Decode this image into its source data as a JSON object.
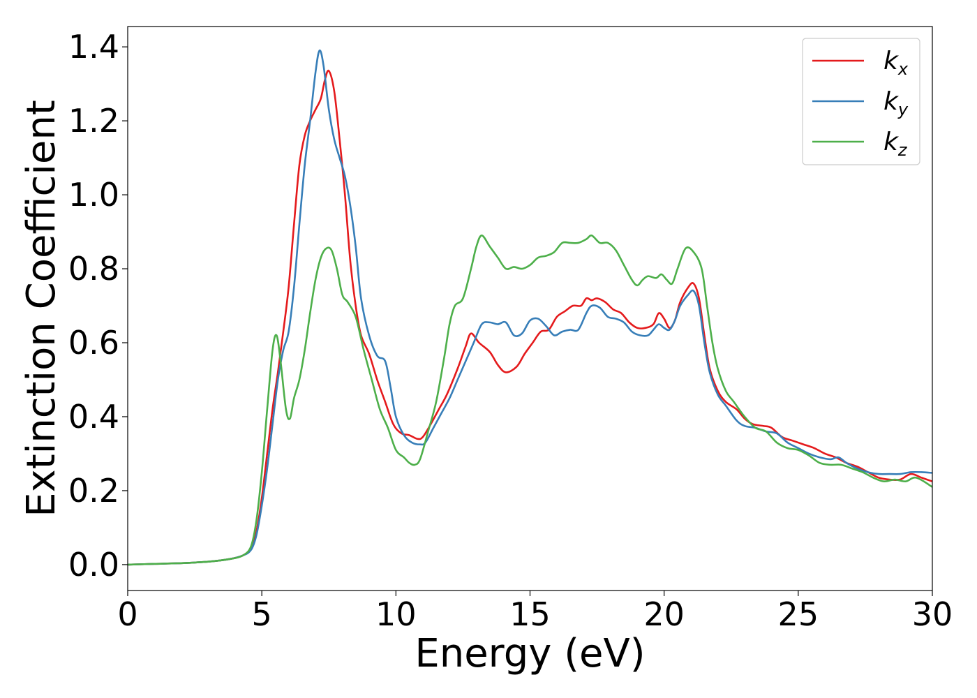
{
  "chart_data": {
    "type": "line",
    "title": "",
    "xlabel": "Energy (eV)",
    "ylabel": "Extinction Coefficient",
    "xlim": [
      0,
      30
    ],
    "ylim": [
      -0.07,
      1.455
    ],
    "xticks": [
      "0",
      "5",
      "10",
      "15",
      "20",
      "25",
      "30"
    ],
    "yticks": [
      "0.0",
      "0.2",
      "0.4",
      "0.6",
      "0.8",
      "1.0",
      "1.2",
      "1.4"
    ],
    "grid": false,
    "legend_position": "top-right",
    "series": [
      {
        "name": "k_x",
        "name_base": "k",
        "name_sub": "x",
        "color": "#e41a1c",
        "points": [
          [
            0,
            0
          ],
          [
            1,
            0.002
          ],
          [
            2,
            0.004
          ],
          [
            3,
            0.008
          ],
          [
            3.8,
            0.015
          ],
          [
            4.3,
            0.025
          ],
          [
            4.6,
            0.045
          ],
          [
            4.8,
            0.09
          ],
          [
            5.0,
            0.18
          ],
          [
            5.2,
            0.3
          ],
          [
            5.4,
            0.42
          ],
          [
            5.6,
            0.52
          ],
          [
            5.8,
            0.63
          ],
          [
            6.0,
            0.75
          ],
          [
            6.2,
            0.92
          ],
          [
            6.4,
            1.08
          ],
          [
            6.6,
            1.16
          ],
          [
            6.8,
            1.2
          ],
          [
            7.0,
            1.23
          ],
          [
            7.2,
            1.26
          ],
          [
            7.35,
            1.31
          ],
          [
            7.5,
            1.335
          ],
          [
            7.7,
            1.28
          ],
          [
            7.9,
            1.15
          ],
          [
            8.1,
            1.0
          ],
          [
            8.3,
            0.82
          ],
          [
            8.5,
            0.7
          ],
          [
            8.7,
            0.62
          ],
          [
            9.0,
            0.57
          ],
          [
            9.3,
            0.5
          ],
          [
            9.6,
            0.44
          ],
          [
            9.9,
            0.38
          ],
          [
            10.2,
            0.355
          ],
          [
            10.5,
            0.35
          ],
          [
            10.8,
            0.34
          ],
          [
            11.0,
            0.345
          ],
          [
            11.3,
            0.38
          ],
          [
            11.6,
            0.42
          ],
          [
            11.9,
            0.46
          ],
          [
            12.3,
            0.53
          ],
          [
            12.6,
            0.59
          ],
          [
            12.8,
            0.625
          ],
          [
            13.1,
            0.6
          ],
          [
            13.5,
            0.575
          ],
          [
            13.8,
            0.54
          ],
          [
            14.1,
            0.52
          ],
          [
            14.5,
            0.535
          ],
          [
            14.8,
            0.57
          ],
          [
            15.1,
            0.6
          ],
          [
            15.4,
            0.63
          ],
          [
            15.7,
            0.635
          ],
          [
            16.0,
            0.67
          ],
          [
            16.3,
            0.685
          ],
          [
            16.6,
            0.7
          ],
          [
            16.9,
            0.7
          ],
          [
            17.1,
            0.72
          ],
          [
            17.3,
            0.715
          ],
          [
            17.5,
            0.72
          ],
          [
            17.8,
            0.71
          ],
          [
            18.1,
            0.69
          ],
          [
            18.4,
            0.68
          ],
          [
            18.7,
            0.655
          ],
          [
            19.0,
            0.64
          ],
          [
            19.3,
            0.64
          ],
          [
            19.6,
            0.65
          ],
          [
            19.8,
            0.68
          ],
          [
            20.0,
            0.665
          ],
          [
            20.2,
            0.64
          ],
          [
            20.4,
            0.66
          ],
          [
            20.6,
            0.71
          ],
          [
            20.9,
            0.75
          ],
          [
            21.1,
            0.76
          ],
          [
            21.3,
            0.72
          ],
          [
            21.5,
            0.62
          ],
          [
            21.7,
            0.53
          ],
          [
            22.0,
            0.47
          ],
          [
            22.3,
            0.44
          ],
          [
            22.7,
            0.42
          ],
          [
            23.0,
            0.395
          ],
          [
            23.3,
            0.38
          ],
          [
            23.7,
            0.375
          ],
          [
            24.0,
            0.37
          ],
          [
            24.4,
            0.345
          ],
          [
            24.8,
            0.335
          ],
          [
            25.2,
            0.325
          ],
          [
            25.6,
            0.315
          ],
          [
            26.0,
            0.3
          ],
          [
            26.4,
            0.29
          ],
          [
            26.8,
            0.275
          ],
          [
            27.2,
            0.265
          ],
          [
            27.6,
            0.25
          ],
          [
            28.0,
            0.235
          ],
          [
            28.4,
            0.23
          ],
          [
            28.8,
            0.23
          ],
          [
            29.2,
            0.245
          ],
          [
            29.6,
            0.235
          ],
          [
            30.0,
            0.225
          ]
        ]
      },
      {
        "name": "k_y",
        "name_base": "k",
        "name_sub": "y",
        "color": "#377eb8",
        "points": [
          [
            0,
            0
          ],
          [
            1,
            0.002
          ],
          [
            2,
            0.004
          ],
          [
            3,
            0.008
          ],
          [
            3.8,
            0.015
          ],
          [
            4.3,
            0.025
          ],
          [
            4.6,
            0.04
          ],
          [
            4.8,
            0.08
          ],
          [
            5.0,
            0.16
          ],
          [
            5.2,
            0.26
          ],
          [
            5.4,
            0.38
          ],
          [
            5.6,
            0.5
          ],
          [
            5.8,
            0.58
          ],
          [
            6.0,
            0.63
          ],
          [
            6.2,
            0.75
          ],
          [
            6.4,
            0.92
          ],
          [
            6.6,
            1.08
          ],
          [
            6.8,
            1.2
          ],
          [
            7.0,
            1.33
          ],
          [
            7.15,
            1.39
          ],
          [
            7.3,
            1.35
          ],
          [
            7.5,
            1.23
          ],
          [
            7.7,
            1.15
          ],
          [
            7.9,
            1.1
          ],
          [
            8.1,
            1.05
          ],
          [
            8.3,
            0.97
          ],
          [
            8.5,
            0.86
          ],
          [
            8.7,
            0.72
          ],
          [
            9.0,
            0.62
          ],
          [
            9.3,
            0.565
          ],
          [
            9.6,
            0.55
          ],
          [
            9.8,
            0.48
          ],
          [
            10.0,
            0.4
          ],
          [
            10.3,
            0.35
          ],
          [
            10.6,
            0.33
          ],
          [
            10.9,
            0.325
          ],
          [
            11.1,
            0.33
          ],
          [
            11.4,
            0.37
          ],
          [
            11.7,
            0.41
          ],
          [
            12.0,
            0.45
          ],
          [
            12.3,
            0.5
          ],
          [
            12.6,
            0.55
          ],
          [
            12.9,
            0.6
          ],
          [
            13.2,
            0.65
          ],
          [
            13.5,
            0.655
          ],
          [
            13.8,
            0.65
          ],
          [
            14.1,
            0.655
          ],
          [
            14.4,
            0.62
          ],
          [
            14.7,
            0.625
          ],
          [
            15.0,
            0.66
          ],
          [
            15.3,
            0.665
          ],
          [
            15.6,
            0.645
          ],
          [
            15.9,
            0.62
          ],
          [
            16.2,
            0.63
          ],
          [
            16.5,
            0.635
          ],
          [
            16.8,
            0.635
          ],
          [
            17.1,
            0.68
          ],
          [
            17.3,
            0.7
          ],
          [
            17.6,
            0.695
          ],
          [
            17.9,
            0.67
          ],
          [
            18.2,
            0.665
          ],
          [
            18.5,
            0.655
          ],
          [
            18.8,
            0.63
          ],
          [
            19.1,
            0.62
          ],
          [
            19.4,
            0.62
          ],
          [
            19.6,
            0.635
          ],
          [
            19.8,
            0.65
          ],
          [
            20.0,
            0.64
          ],
          [
            20.2,
            0.635
          ],
          [
            20.4,
            0.66
          ],
          [
            20.6,
            0.7
          ],
          [
            20.9,
            0.73
          ],
          [
            21.1,
            0.74
          ],
          [
            21.3,
            0.7
          ],
          [
            21.5,
            0.6
          ],
          [
            21.7,
            0.52
          ],
          [
            22.0,
            0.46
          ],
          [
            22.3,
            0.43
          ],
          [
            22.7,
            0.39
          ],
          [
            23.0,
            0.375
          ],
          [
            23.4,
            0.37
          ],
          [
            23.8,
            0.36
          ],
          [
            24.2,
            0.355
          ],
          [
            24.6,
            0.33
          ],
          [
            25.0,
            0.315
          ],
          [
            25.4,
            0.3
          ],
          [
            25.8,
            0.29
          ],
          [
            26.2,
            0.285
          ],
          [
            26.5,
            0.29
          ],
          [
            26.8,
            0.275
          ],
          [
            27.2,
            0.26
          ],
          [
            27.6,
            0.25
          ],
          [
            28.0,
            0.245
          ],
          [
            28.4,
            0.245
          ],
          [
            28.8,
            0.245
          ],
          [
            29.2,
            0.25
          ],
          [
            29.6,
            0.25
          ],
          [
            30.0,
            0.248
          ]
        ]
      },
      {
        "name": "k_z",
        "name_base": "k",
        "name_sub": "z",
        "color": "#4daf4a",
        "points": [
          [
            0,
            0
          ],
          [
            1,
            0.002
          ],
          [
            2,
            0.004
          ],
          [
            3,
            0.008
          ],
          [
            3.8,
            0.015
          ],
          [
            4.3,
            0.025
          ],
          [
            4.6,
            0.05
          ],
          [
            4.8,
            0.12
          ],
          [
            5.0,
            0.25
          ],
          [
            5.2,
            0.42
          ],
          [
            5.4,
            0.58
          ],
          [
            5.55,
            0.62
          ],
          [
            5.7,
            0.55
          ],
          [
            5.9,
            0.42
          ],
          [
            6.05,
            0.395
          ],
          [
            6.2,
            0.45
          ],
          [
            6.4,
            0.5
          ],
          [
            6.6,
            0.58
          ],
          [
            6.8,
            0.68
          ],
          [
            7.0,
            0.77
          ],
          [
            7.2,
            0.83
          ],
          [
            7.4,
            0.855
          ],
          [
            7.6,
            0.85
          ],
          [
            7.8,
            0.8
          ],
          [
            8.0,
            0.73
          ],
          [
            8.2,
            0.71
          ],
          [
            8.5,
            0.67
          ],
          [
            8.8,
            0.58
          ],
          [
            9.1,
            0.5
          ],
          [
            9.4,
            0.42
          ],
          [
            9.7,
            0.37
          ],
          [
            10.0,
            0.31
          ],
          [
            10.3,
            0.29
          ],
          [
            10.5,
            0.275
          ],
          [
            10.7,
            0.27
          ],
          [
            10.9,
            0.285
          ],
          [
            11.2,
            0.36
          ],
          [
            11.5,
            0.44
          ],
          [
            11.8,
            0.56
          ],
          [
            12.0,
            0.65
          ],
          [
            12.2,
            0.7
          ],
          [
            12.5,
            0.72
          ],
          [
            12.8,
            0.8
          ],
          [
            13.0,
            0.86
          ],
          [
            13.2,
            0.89
          ],
          [
            13.5,
            0.86
          ],
          [
            13.8,
            0.83
          ],
          [
            14.1,
            0.8
          ],
          [
            14.4,
            0.805
          ],
          [
            14.7,
            0.8
          ],
          [
            15.0,
            0.81
          ],
          [
            15.3,
            0.83
          ],
          [
            15.6,
            0.835
          ],
          [
            15.9,
            0.845
          ],
          [
            16.2,
            0.87
          ],
          [
            16.5,
            0.87
          ],
          [
            16.8,
            0.87
          ],
          [
            17.1,
            0.88
          ],
          [
            17.3,
            0.89
          ],
          [
            17.6,
            0.87
          ],
          [
            17.9,
            0.87
          ],
          [
            18.2,
            0.85
          ],
          [
            18.5,
            0.81
          ],
          [
            18.8,
            0.77
          ],
          [
            19.0,
            0.755
          ],
          [
            19.2,
            0.77
          ],
          [
            19.4,
            0.78
          ],
          [
            19.7,
            0.775
          ],
          [
            19.9,
            0.785
          ],
          [
            20.1,
            0.77
          ],
          [
            20.3,
            0.76
          ],
          [
            20.5,
            0.8
          ],
          [
            20.8,
            0.855
          ],
          [
            21.1,
            0.845
          ],
          [
            21.4,
            0.8
          ],
          [
            21.6,
            0.7
          ],
          [
            21.8,
            0.6
          ],
          [
            22.0,
            0.53
          ],
          [
            22.3,
            0.47
          ],
          [
            22.6,
            0.44
          ],
          [
            23.0,
            0.4
          ],
          [
            23.4,
            0.37
          ],
          [
            23.8,
            0.36
          ],
          [
            24.2,
            0.33
          ],
          [
            24.6,
            0.315
          ],
          [
            25.0,
            0.31
          ],
          [
            25.4,
            0.295
          ],
          [
            25.8,
            0.275
          ],
          [
            26.2,
            0.27
          ],
          [
            26.6,
            0.27
          ],
          [
            27.0,
            0.26
          ],
          [
            27.4,
            0.25
          ],
          [
            27.8,
            0.235
          ],
          [
            28.2,
            0.225
          ],
          [
            28.6,
            0.23
          ],
          [
            29.0,
            0.225
          ],
          [
            29.4,
            0.235
          ],
          [
            30.0,
            0.21
          ]
        ]
      }
    ]
  }
}
